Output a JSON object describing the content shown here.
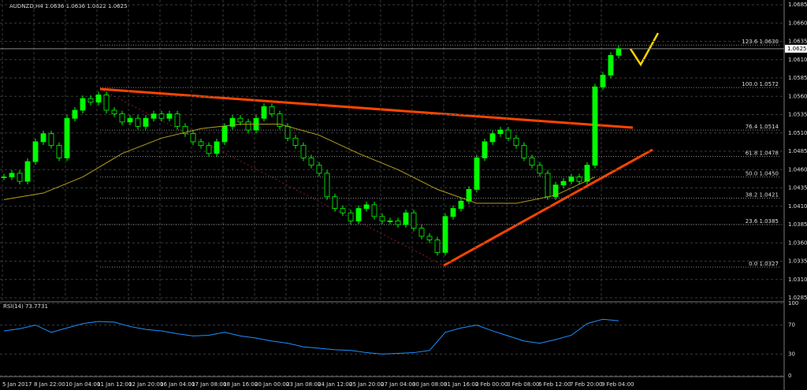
{
  "chart_data": {
    "type": "candlestick",
    "title": "AUDNZD,H4  1.0636 1.0636 1.0622 1.0625",
    "current_price": {
      "value": 1.0625,
      "label": "1.0625"
    },
    "up_color": "#00ff00",
    "down_color": "#000000",
    "wick_color": "#00ff00",
    "ylim": [
      1.02775,
      1.06915
    ],
    "yticks": [
      {
        "value": 1.0685,
        "label": "1.0685"
      },
      {
        "value": 1.066,
        "label": "1.0660"
      },
      {
        "value": 1.0635,
        "label": "1.0635"
      },
      {
        "value": 1.061,
        "label": "1.0610"
      },
      {
        "value": 1.0585,
        "label": "1.0585"
      },
      {
        "value": 1.056,
        "label": "1.0560"
      },
      1.0535,
      {
        "value": 1.051,
        "label": "1.0510"
      },
      1.0485,
      {
        "value": 1.046,
        "label": "1.0460"
      },
      1.0435,
      {
        "value": 1.041,
        "label": "1.0410"
      },
      1.0385,
      {
        "value": 1.036,
        "label": "1.0360"
      },
      1.0335,
      {
        "value": 1.031,
        "label": "1.0310"
      },
      1.0285
    ],
    "x_labels": [
      "5 Jan 2017",
      "8 Jan 22:00",
      "10 Jan 04:00",
      "11 Jan 12:00",
      "12 Jan 20:00",
      "16 Jan 04:00",
      "17 Jan 08:00",
      "18 Jan 16:00",
      "20 Jan 00:00",
      "23 Jan 08:00",
      "24 Jan 12:00",
      "25 Jan 20:00",
      "27 Jan 04:00",
      "30 Jan 08:00",
      "31 Jan 16:00",
      "2 Feb 00:00",
      "3 Feb 08:00",
      "6 Feb 12:00",
      "7 Feb 20:00",
      "9 Feb 04:00"
    ],
    "closes": [
      1.045,
      1.0455,
      1.0444,
      1.0471,
      1.0498,
      1.0509,
      1.0493,
      1.0476,
      1.053,
      1.0541,
      1.0557,
      1.0552,
      1.0562,
      1.0541,
      1.0536,
      1.0525,
      1.053,
      1.0519,
      1.053,
      1.0536,
      1.053,
      1.0536,
      1.0519,
      1.0509,
      1.0498,
      1.0493,
      1.0482,
      1.0498,
      1.0519,
      1.053,
      1.0525,
      1.0514,
      1.053,
      1.0546,
      1.0536,
      1.0519,
      1.0503,
      1.0493,
      1.0476,
      1.0466,
      1.0455,
      1.0423,
      1.0407,
      1.0401,
      1.039,
      1.0407,
      1.0412,
      1.0396,
      1.039,
      1.039,
      1.0385,
      1.0401,
      1.038,
      1.0369,
      1.0364,
      1.0347,
      1.0396,
      1.0407,
      1.0417,
      1.0433,
      1.0476,
      1.0498,
      1.0509,
      1.0514,
      1.0503,
      1.0493,
      1.0476,
      1.0466,
      1.0455,
      1.0423,
      1.0439,
      1.0444,
      1.045,
      1.0444,
      1.0466,
      1.0573,
      1.0589,
      1.0616,
      1.0625
    ],
    "ma": {
      "color": "#b5a020",
      "values": [
        1.0419,
        1.0428,
        1.045,
        1.0482,
        1.0503,
        1.0516,
        1.0522,
        1.0522,
        1.0507,
        1.0482,
        1.046,
        1.0433,
        1.0414,
        1.0414,
        1.0425,
        1.045
      ]
    },
    "fib_levels": [
      {
        "value": 1.063,
        "label": "123.6 1.0630"
      },
      {
        "value": 1.0572,
        "label": "100.0 1.0572"
      },
      {
        "value": 1.0514,
        "label": "76.4 1.0514"
      },
      {
        "value": 1.0478,
        "label": "61.8 1.0478"
      },
      {
        "value": 1.045,
        "label": "50.0 1.0450"
      },
      {
        "value": 1.0421,
        "label": "38.2 1.0421"
      },
      {
        "value": 1.0385,
        "label": "23.6 1.0385"
      },
      {
        "value": 1.0327,
        "label": "0.0 1.0327"
      }
    ],
    "rsi": {
      "title": "RSI(14) 73.7731",
      "color": "#1e90ff",
      "ylim": [
        0,
        100
      ],
      "yticks": [
        100,
        70,
        30,
        0
      ],
      "values": [
        62,
        65,
        70,
        60,
        66,
        72,
        75,
        74,
        68,
        64,
        62,
        58,
        55,
        56,
        60,
        55,
        52,
        48,
        45,
        40,
        38,
        36,
        35,
        32,
        30,
        31,
        32,
        35,
        60,
        66,
        70,
        62,
        55,
        48,
        45,
        50,
        56,
        72,
        78,
        76
      ]
    }
  }
}
